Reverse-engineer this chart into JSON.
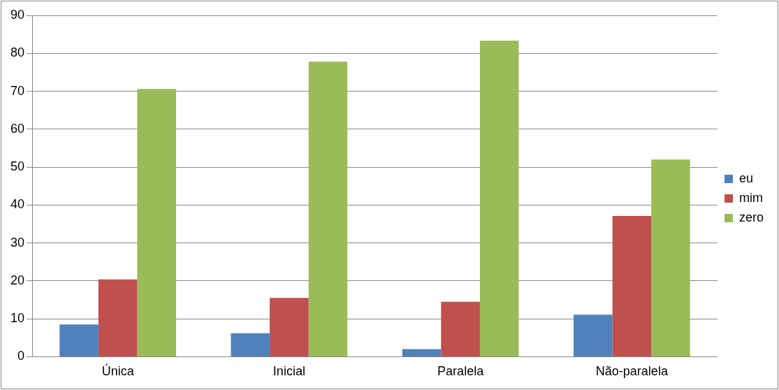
{
  "chart_data": {
    "type": "bar",
    "categories": [
      "Única",
      "Inicial",
      "Paralela",
      "Não-paralela"
    ],
    "series": [
      {
        "name": "eu",
        "color": "#4f81bd",
        "values": [
          8.5,
          6.2,
          2.0,
          11.1
        ]
      },
      {
        "name": "mim",
        "color": "#c0504d",
        "values": [
          20.4,
          15.5,
          14.5,
          37.1
        ]
      },
      {
        "name": "zero",
        "color": "#9bbb59",
        "values": [
          70.6,
          77.8,
          83.3,
          52.0
        ]
      }
    ],
    "ylim": [
      0,
      90
    ],
    "yticks": [
      0,
      10,
      20,
      30,
      40,
      50,
      60,
      70,
      80,
      90
    ],
    "grid": "y",
    "legend": "right"
  }
}
